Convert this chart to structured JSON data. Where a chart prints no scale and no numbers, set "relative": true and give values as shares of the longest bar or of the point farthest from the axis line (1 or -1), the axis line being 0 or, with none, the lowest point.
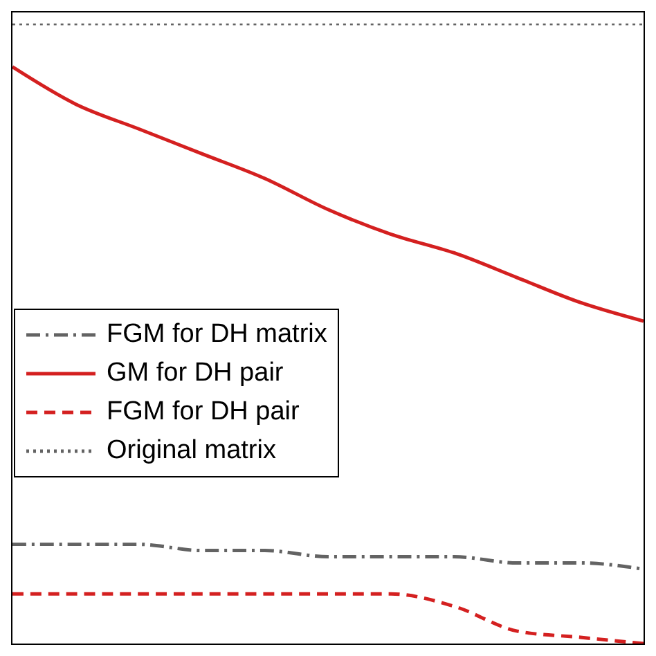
{
  "chart_data": {
    "type": "line",
    "relative": true,
    "categories": [
      null,
      null,
      null,
      null,
      null,
      null,
      null,
      null,
      null,
      null,
      null
    ],
    "legend": "left",
    "grid": false,
    "marker": "none",
    "series": [
      {
        "name": "FGM for DH matrix",
        "color": "#636363",
        "line_style": "dashdot",
        "values": [
          0.16,
          0.16,
          0.16,
          0.15,
          0.15,
          0.14,
          0.14,
          0.14,
          0.13,
          0.13,
          0.12
        ]
      },
      {
        "name": "GM for DH pair",
        "color": "#d42020",
        "line_style": "solid",
        "values": [
          0.93,
          0.87,
          0.83,
          0.79,
          0.75,
          0.7,
          0.66,
          0.63,
          0.59,
          0.55,
          0.52
        ]
      },
      {
        "name": "FGM for DH pair",
        "color": "#d42020",
        "line_style": "dashed",
        "values": [
          0.08,
          0.08,
          0.08,
          0.08,
          0.08,
          0.08,
          0.08,
          0.06,
          0.02,
          0.01,
          0
        ]
      },
      {
        "name": "Original matrix",
        "color": "#636363",
        "line_style": "dotted",
        "values": [
          1,
          1,
          1,
          1,
          1,
          1,
          1,
          1,
          1,
          1,
          1
        ]
      }
    ]
  }
}
